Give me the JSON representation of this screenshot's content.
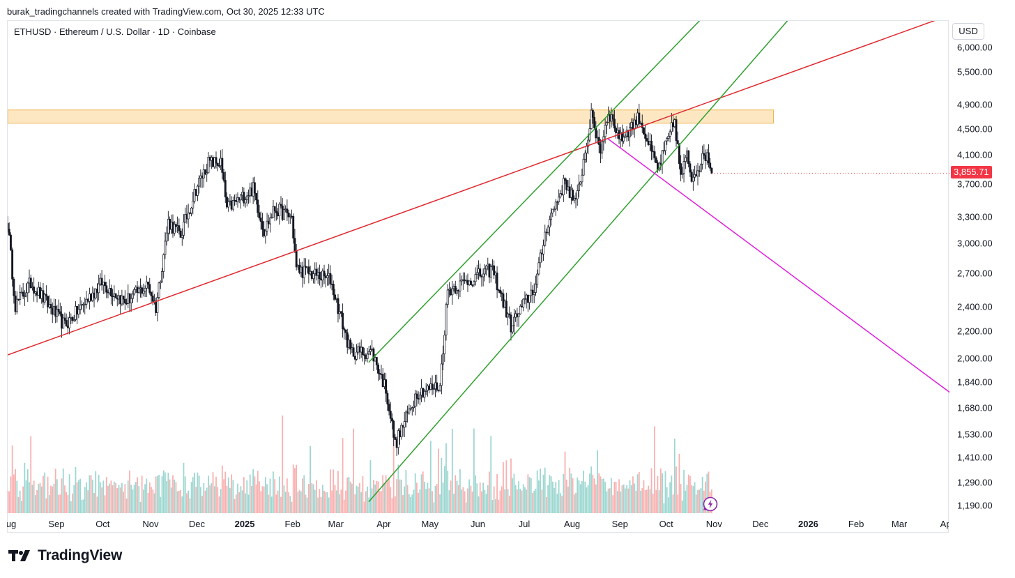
{
  "caption": "burak_tradingchannels created with TradingView.com, Oct 30, 2025 12:33 UTC",
  "symbol_title": "ETHUSD · Ethereum / U.S. Dollar · 1D · Coinbase",
  "currency": "USD",
  "current_price_label": "3,855.71",
  "brand": "TradingView",
  "colors": {
    "up": "#26a69a",
    "down": "#ef5350",
    "red_line": "#e0282e",
    "green_channel": "#2ca02c",
    "magenta_line": "#e020e0",
    "zone_fill": "#fde7c3",
    "zone_border": "#f0b44a",
    "price_label_bg": "#f23645"
  },
  "chart_data": {
    "type": "candlestick",
    "symbol": "ETHUSD",
    "timeframe": "1D",
    "exchange": "Coinbase",
    "y_scale": "log",
    "ylim": [
      1150,
      6600
    ],
    "x_range": [
      "2024-07-31",
      "2026-04-02"
    ],
    "y_ticks": [
      "6,000.00",
      "5,500.00",
      "4,900.00",
      "4,500.00",
      "4,100.00",
      "3,700.00",
      "3,300.00",
      "3,000.00",
      "2,700.00",
      "2,400.00",
      "2,200.00",
      "2,000.00",
      "1,840.00",
      "1,680.00",
      "1,530.00",
      "1,410.00",
      "1,290.00",
      "1,190.00"
    ],
    "y_tick_values": [
      6000,
      5500,
      4900,
      4500,
      4100,
      3700,
      3300,
      3000,
      2700,
      2400,
      2200,
      2000,
      1840,
      1680,
      1530,
      1410,
      1290,
      1190
    ],
    "x_ticks": [
      {
        "label": "ug",
        "date": "2024-08-01",
        "bold": false
      },
      {
        "label": "Sep",
        "date": "2024-09-01",
        "bold": false
      },
      {
        "label": "Oct",
        "date": "2024-10-01",
        "bold": false
      },
      {
        "label": "Nov",
        "date": "2024-11-01",
        "bold": false
      },
      {
        "label": "Dec",
        "date": "2024-12-01",
        "bold": false
      },
      {
        "label": "2025",
        "date": "2025-01-01",
        "bold": true
      },
      {
        "label": "Feb",
        "date": "2025-02-01",
        "bold": false
      },
      {
        "label": "Mar",
        "date": "2025-03-01",
        "bold": false
      },
      {
        "label": "Apr",
        "date": "2025-04-01",
        "bold": false
      },
      {
        "label": "May",
        "date": "2025-05-01",
        "bold": false
      },
      {
        "label": "Jun",
        "date": "2025-06-01",
        "bold": false
      },
      {
        "label": "Jul",
        "date": "2025-07-01",
        "bold": false
      },
      {
        "label": "Aug",
        "date": "2025-08-01",
        "bold": false
      },
      {
        "label": "Sep",
        "date": "2025-09-01",
        "bold": false
      },
      {
        "label": "Oct",
        "date": "2025-10-01",
        "bold": false
      },
      {
        "label": "Nov",
        "date": "2025-11-01",
        "bold": false
      },
      {
        "label": "Dec",
        "date": "2025-12-01",
        "bold": false
      },
      {
        "label": "2026",
        "date": "2026-01-01",
        "bold": true
      },
      {
        "label": "Feb",
        "date": "2026-02-01",
        "bold": false
      },
      {
        "label": "Mar",
        "date": "2026-03-01",
        "bold": false
      },
      {
        "label": "Apr",
        "date": "2026-04-01",
        "bold": false
      }
    ],
    "price_anchors": [
      {
        "date": "2024-07-31",
        "close": 3230
      },
      {
        "date": "2024-08-05",
        "close": 2420
      },
      {
        "date": "2024-08-15",
        "close": 2620
      },
      {
        "date": "2024-09-06",
        "close": 2250
      },
      {
        "date": "2024-09-30",
        "close": 2620
      },
      {
        "date": "2024-10-15",
        "close": 2450
      },
      {
        "date": "2024-10-30",
        "close": 2600
      },
      {
        "date": "2024-11-04",
        "close": 2400
      },
      {
        "date": "2024-11-12",
        "close": 3250
      },
      {
        "date": "2024-11-20",
        "close": 3100
      },
      {
        "date": "2024-11-30",
        "close": 3650
      },
      {
        "date": "2024-12-08",
        "close": 4000
      },
      {
        "date": "2024-12-16",
        "close": 4000
      },
      {
        "date": "2024-12-20",
        "close": 3400
      },
      {
        "date": "2025-01-06",
        "close": 3650
      },
      {
        "date": "2025-01-13",
        "close": 3150
      },
      {
        "date": "2025-01-20",
        "close": 3400
      },
      {
        "date": "2025-01-31",
        "close": 3300
      },
      {
        "date": "2025-02-03",
        "close": 2750
      },
      {
        "date": "2025-02-25",
        "close": 2650
      },
      {
        "date": "2025-03-10",
        "close": 2050
      },
      {
        "date": "2025-03-24",
        "close": 2050
      },
      {
        "date": "2025-04-02",
        "close": 1800
      },
      {
        "date": "2025-04-08",
        "close": 1480
      },
      {
        "date": "2025-04-22",
        "close": 1780
      },
      {
        "date": "2025-05-07",
        "close": 1820
      },
      {
        "date": "2025-05-12",
        "close": 2550
      },
      {
        "date": "2025-06-10",
        "close": 2750
      },
      {
        "date": "2025-06-22",
        "close": 2250
      },
      {
        "date": "2025-07-08",
        "close": 2600
      },
      {
        "date": "2025-07-15",
        "close": 3200
      },
      {
        "date": "2025-07-27",
        "close": 3750
      },
      {
        "date": "2025-08-03",
        "close": 3450
      },
      {
        "date": "2025-08-13",
        "close": 4700
      },
      {
        "date": "2025-08-19",
        "close": 4200
      },
      {
        "date": "2025-08-24",
        "close": 4800
      },
      {
        "date": "2025-09-01",
        "close": 4350
      },
      {
        "date": "2025-09-13",
        "close": 4700
      },
      {
        "date": "2025-09-25",
        "close": 3900
      },
      {
        "date": "2025-10-06",
        "close": 4650
      },
      {
        "date": "2025-10-10",
        "close": 3800
      },
      {
        "date": "2025-10-14",
        "close": 4100
      },
      {
        "date": "2025-10-17",
        "close": 3800
      },
      {
        "date": "2025-10-27",
        "close": 4150
      },
      {
        "date": "2025-10-30",
        "close": 3855.71
      }
    ],
    "volume": {
      "colors_follow_candle_direction": true
    },
    "drawings": [
      {
        "type": "trendline",
        "color": "red",
        "from": {
          "date": "2024-07-31",
          "price": 2030
        },
        "to": {
          "date": "2026-03-15",
          "price": 6500
        },
        "extends": "right"
      },
      {
        "type": "channel-line",
        "color": "green",
        "from": {
          "date": "2025-03-22",
          "price": 1980
        },
        "to": {
          "date": "2025-10-22",
          "price": 6600
        }
      },
      {
        "type": "channel-line",
        "color": "green",
        "from": {
          "date": "2025-03-22",
          "price": 1210
        },
        "to": {
          "date": "2025-12-18",
          "price": 6600
        }
      },
      {
        "type": "trendline",
        "color": "magenta",
        "from": {
          "date": "2025-08-24",
          "price": 4350
        },
        "to": {
          "date": "2026-04-02",
          "price": 1780
        }
      },
      {
        "type": "rectangle-zone",
        "from_date": "2024-07-31",
        "to_date": "2025-12-09",
        "price_low": 4600,
        "price_high": 4820
      }
    ],
    "last_price": 3855.71
  }
}
